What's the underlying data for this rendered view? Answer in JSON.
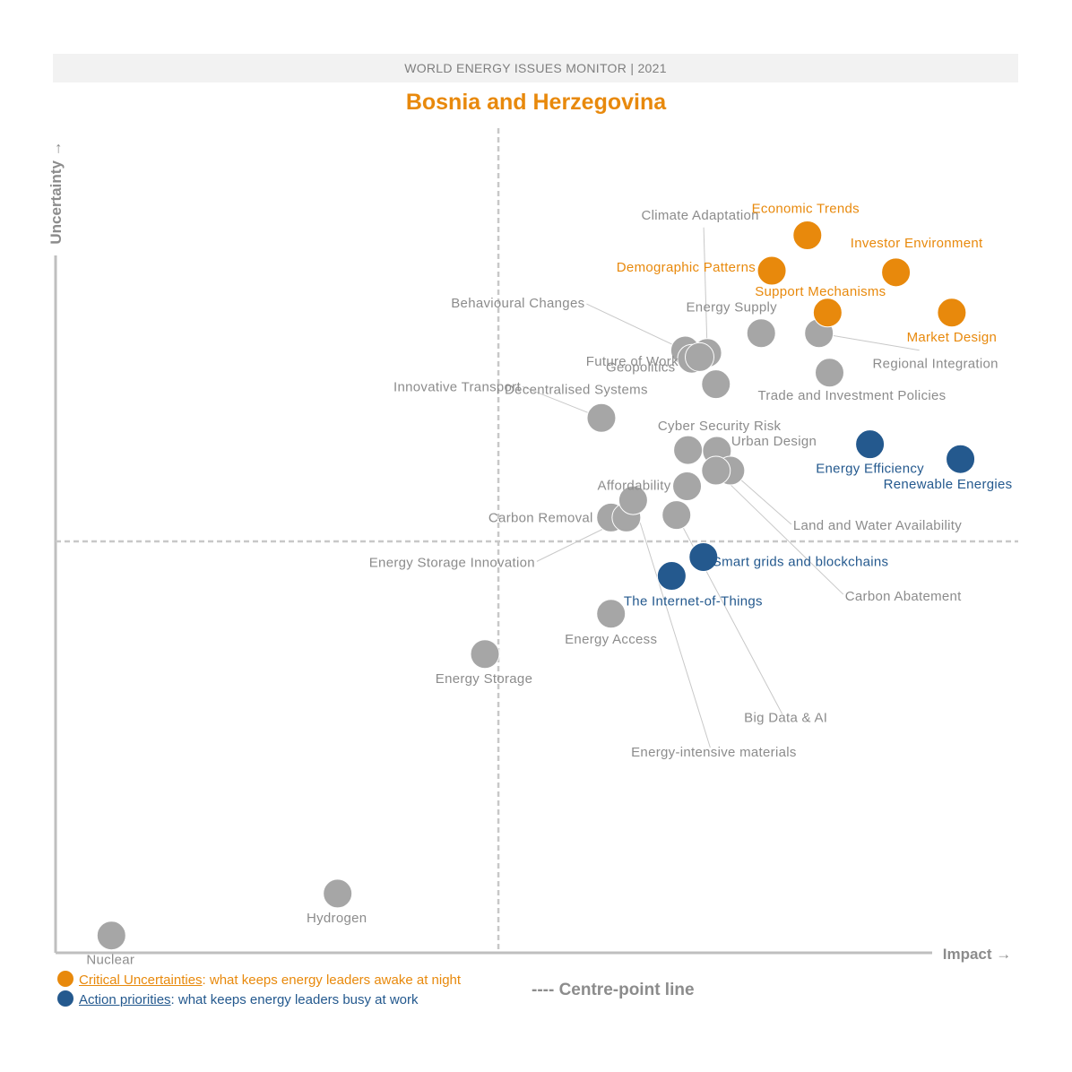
{
  "header": {
    "title": "WORLD ENERGY ISSUES MONITOR | 2021"
  },
  "country": "Bosnia and Herzegovina",
  "colors": {
    "critical": "#e8890c",
    "action": "#24598e",
    "other": "#a6a6a6",
    "label_other": "#8c8c8c"
  },
  "legend": {
    "critical_key": "Critical Uncertainties",
    "critical_text": ": what keeps energy leaders awake at night",
    "action_key": "Action priorities",
    "action_text": ": what keeps energy leaders busy at work",
    "centre_line": "---- Centre-point line"
  },
  "chart_data": {
    "type": "scatter",
    "title": "Bosnia and Herzegovina",
    "xlabel": "Impact →",
    "ylabel": "Uncertainty →",
    "xlim": [
      0,
      100
    ],
    "ylim": [
      0,
      100
    ],
    "centre": {
      "x": 46,
      "y": 50
    },
    "grid": false,
    "points": [
      {
        "name": "Economic Trends",
        "x": 78.1,
        "y": 87.2,
        "category": "critical"
      },
      {
        "name": "Investor Environment",
        "x": 87.3,
        "y": 82.7,
        "category": "critical"
      },
      {
        "name": "Demographic Patterns",
        "x": 74.4,
        "y": 82.9,
        "category": "critical"
      },
      {
        "name": "Support Mechanisms",
        "x": 80.2,
        "y": 77.8,
        "category": "critical"
      },
      {
        "name": "Market Design",
        "x": 93.1,
        "y": 77.8,
        "category": "critical"
      },
      {
        "name": "Energy Efficiency",
        "x": 84.6,
        "y": 61.8,
        "category": "action"
      },
      {
        "name": "Renewable Energies",
        "x": 94.0,
        "y": 60.0,
        "category": "action"
      },
      {
        "name": "Smart grids and blockchains",
        "x": 67.3,
        "y": 48.1,
        "category": "action"
      },
      {
        "name": "The Internet-of-Things",
        "x": 64.0,
        "y": 45.8,
        "category": "action"
      },
      {
        "name": "Climate Adaptation",
        "x": 67.7,
        "y": 72.9,
        "category": "other"
      },
      {
        "name": "Behavioural Changes",
        "x": 65.4,
        "y": 73.2,
        "category": "other"
      },
      {
        "name": "Energy Supply",
        "x": 73.3,
        "y": 75.3,
        "category": "other"
      },
      {
        "name": "Future of Work",
        "x": 66.1,
        "y": 72.2,
        "category": "other"
      },
      {
        "name": "Geopolitics",
        "x": 66.9,
        "y": 72.4,
        "category": "other"
      },
      {
        "name": "Regional Integration",
        "x": 79.3,
        "y": 75.3,
        "category": "other"
      },
      {
        "name": "Trade and Investment Policies",
        "x": 80.4,
        "y": 70.5,
        "category": "other"
      },
      {
        "name": "Decentralised Systems",
        "x": 68.6,
        "y": 69.1,
        "category": "other"
      },
      {
        "name": "Cyber Security Risk",
        "x": 65.7,
        "y": 61.1,
        "category": "other"
      },
      {
        "name": "Urban Design",
        "x": 68.7,
        "y": 61.0,
        "category": "other"
      },
      {
        "name": "Innovative Transport",
        "x": 56.7,
        "y": 65.0,
        "category": "other"
      },
      {
        "name": "Affordability",
        "x": 65.6,
        "y": 56.7,
        "category": "other"
      },
      {
        "name": "Carbon Removal",
        "x": 57.7,
        "y": 52.9,
        "category": "other"
      },
      {
        "name": "Energy Storage Innovation",
        "x": 59.3,
        "y": 52.9,
        "category": "other"
      },
      {
        "name": "Land and Water Availability",
        "x": 70.1,
        "y": 58.6,
        "category": "other"
      },
      {
        "name": "Carbon Abatement",
        "x": 68.6,
        "y": 58.6,
        "category": "other"
      },
      {
        "name": "Big Data & AI",
        "x": 64.5,
        "y": 53.2,
        "category": "other"
      },
      {
        "name": "Energy-intensive materials",
        "x": 60.0,
        "y": 55.0,
        "category": "other"
      },
      {
        "name": "Energy Access",
        "x": 57.7,
        "y": 41.2,
        "category": "other"
      },
      {
        "name": "Energy Storage",
        "x": 44.6,
        "y": 36.3,
        "category": "other"
      },
      {
        "name": "Hydrogen",
        "x": 29.3,
        "y": 7.2,
        "category": "other"
      },
      {
        "name": "Nuclear",
        "x": 5.8,
        "y": 2.1,
        "category": "other"
      }
    ]
  }
}
